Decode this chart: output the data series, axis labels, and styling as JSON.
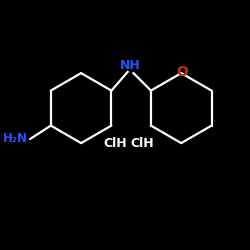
{
  "background_color": "#000000",
  "bond_color": "#ffffff",
  "N_color": "#2255ff",
  "O_color": "#cc3300",
  "text_color": "#ffffff",
  "NH_label": "NH",
  "NH2_label": "H₂N",
  "HCl1_label": "ClH",
  "HCl2_label": "ClH",
  "O_label": "O",
  "figsize": [
    2.5,
    2.5
  ],
  "dpi": 100
}
